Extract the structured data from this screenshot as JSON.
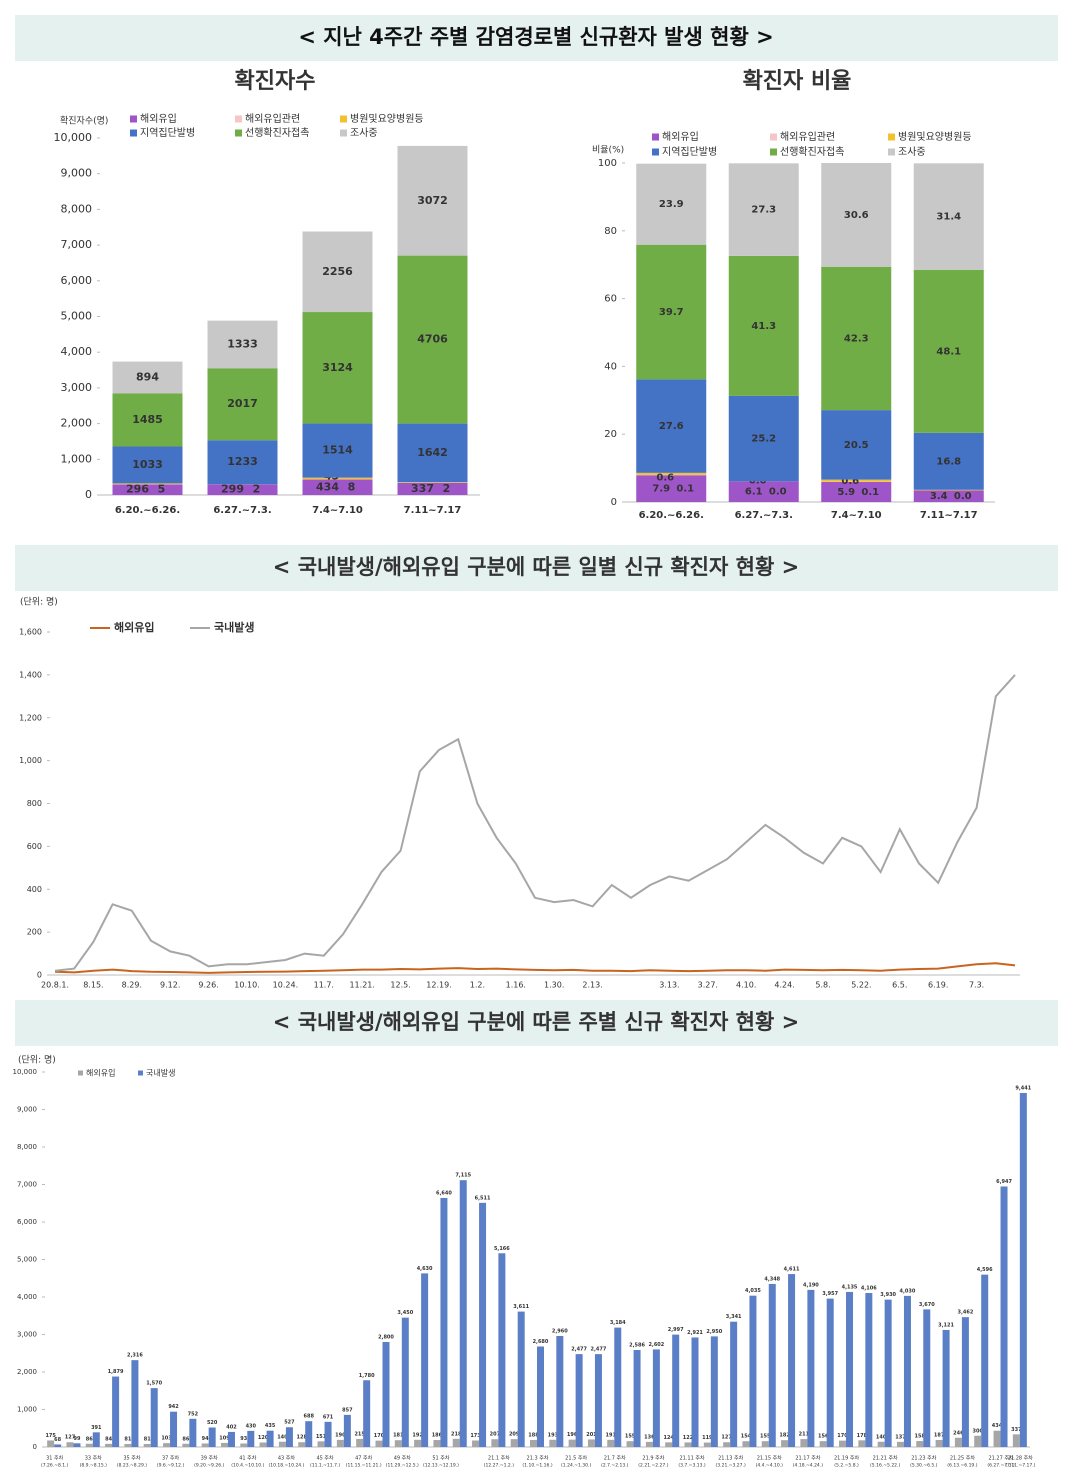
{
  "header": "< 지난 4주간 주별 감염경로별 신규환자 발생 현황 >",
  "chart_data": [
    {
      "type": "stacked_bar",
      "title": "확진자수",
      "y_label": "확진자수(명)",
      "categories": [
        "6.20.~6.26.",
        "6.27.~7.3.",
        "7.4~7.10",
        "7.11~7.17"
      ],
      "series": [
        {
          "name": "해외유입",
          "color": "#9e55c8",
          "values": [
            296,
            299,
            434,
            337
          ]
        },
        {
          "name": "해외유입관련",
          "color": "#f6c6c6",
          "values": [
            5,
            2,
            8,
            2
          ]
        },
        {
          "name": "병원및요양병원등",
          "color": "#f2c12e",
          "values": [
            24,
            0,
            45,
            19
          ]
        },
        {
          "name": "지역집단발병",
          "color": "#4472c4",
          "values": [
            1033,
            1233,
            1514,
            1642
          ]
        },
        {
          "name": "선행확진자접촉",
          "color": "#70ad47",
          "values": [
            1485,
            2017,
            3124,
            4706
          ]
        },
        {
          "name": "조사중",
          "color": "#c8c8c8",
          "values": [
            894,
            1333,
            2256,
            3072
          ]
        }
      ],
      "ylim": [
        0,
        10000
      ],
      "yticks": [
        0,
        {
          "value": 1000,
          "label": "1,000"
        },
        {
          "value": 2000,
          "label": "2,000"
        },
        {
          "value": 3000,
          "label": "3,000"
        },
        {
          "value": 4000,
          "label": "4,000"
        },
        {
          "value": 5000,
          "label": "5,000"
        },
        {
          "value": 6000,
          "label": "6,000"
        },
        {
          "value": 7000,
          "label": "7,000"
        },
        {
          "value": 8000,
          "label": "8,000"
        },
        {
          "value": 9000,
          "label": "9,000"
        },
        {
          "value": 10000,
          "label": "10,000"
        }
      ],
      "grid": false
    },
    {
      "type": "stacked_bar",
      "title": "확진자 비율",
      "y_label": "비율(%)",
      "categories": [
        "6.20.~6.26.",
        "6.27.~7.3.",
        "7.4~7.10",
        "7.11~7.17"
      ],
      "series": [
        {
          "name": "해외유입",
          "color": "#9e55c8",
          "values": [
            7.9,
            6.1,
            5.9,
            3.4
          ]
        },
        {
          "name": "해외유입관련",
          "color": "#f6c6c6",
          "values": [
            0.1,
            0.0,
            0.1,
            0.0
          ],
          "value_labels": [
            "0.1",
            "0.0",
            "0.1",
            "0.0"
          ]
        },
        {
          "name": "병원및요양병원등",
          "color": "#f2c12e",
          "values": [
            0.6,
            0.0,
            0.6,
            0.2
          ],
          "value_labels": [
            "0.6",
            "0.0",
            "0.6",
            "0.2"
          ]
        },
        {
          "name": "지역집단발병",
          "color": "#4472c4",
          "values": [
            27.6,
            25.2,
            20.5,
            16.8
          ]
        },
        {
          "name": "선행확진자접촉",
          "color": "#70ad47",
          "values": [
            39.7,
            41.3,
            42.3,
            48.1
          ]
        },
        {
          "name": "조사중",
          "color": "#c8c8c8",
          "values": [
            23.9,
            27.3,
            30.6,
            31.4
          ]
        }
      ],
      "ylim": [
        0,
        100
      ],
      "yticks": [
        0,
        20,
        40,
        60,
        80,
        100
      ],
      "grid": false
    },
    {
      "type": "line",
      "title": "< 국내발생/해외유입 구분에 따른 일별 신규 확진자 현황 >",
      "y_label": "(단위: 명)",
      "categories": [
        "20.8.1.",
        null,
        "8.15.",
        null,
        "8.29.",
        null,
        "9.12.",
        null,
        "9.26.",
        null,
        "10.10.",
        null,
        "10.24.",
        null,
        "11.7.",
        null,
        "11.21.",
        null,
        "12.5.",
        null,
        "12.19.",
        null,
        "1.2.",
        null,
        "1.16.",
        null,
        "1.30.",
        null,
        "2.13.",
        null,
        null,
        null,
        "3.13.",
        null,
        "3.27.",
        null,
        "4.10.",
        null,
        "4.24.",
        null,
        "5.8.",
        null,
        "5.22.",
        null,
        "6.5.",
        null,
        "6.19.",
        null,
        "7.3.",
        null,
        null
      ],
      "series": [
        {
          "name": "해외유입",
          "color": "#c8641e",
          "values": [
            15,
            12,
            20,
            25,
            18,
            15,
            14,
            12,
            10,
            12,
            14,
            15,
            16,
            18,
            20,
            22,
            25,
            25,
            28,
            26,
            30,
            32,
            28,
            30,
            26,
            24,
            22,
            24,
            20,
            20,
            18,
            22,
            20,
            18,
            20,
            22,
            22,
            20,
            25,
            24,
            22,
            24,
            22,
            20,
            25,
            28,
            30,
            40,
            50,
            55,
            45
          ]
        },
        {
          "name": "국내발생",
          "color": "#a6a6a6",
          "values": [
            20,
            30,
            155,
            330,
            300,
            160,
            110,
            90,
            40,
            50,
            50,
            60,
            70,
            100,
            90,
            190,
            330,
            480,
            580,
            950,
            1050,
            1100,
            800,
            640,
            520,
            360,
            340,
            350,
            320,
            420,
            360,
            420,
            460,
            440,
            490,
            540,
            620,
            700,
            640,
            570,
            520,
            640,
            600,
            480,
            680,
            520,
            430,
            620,
            780,
            1300,
            1400
          ]
        }
      ],
      "ylim": [
        0,
        1600
      ],
      "yticks": [
        0,
        200,
        400,
        600,
        800,
        {
          "value": 1000,
          "label": "1,000"
        },
        {
          "value": 1200,
          "label": "1,200"
        },
        {
          "value": 1400,
          "label": "1,400"
        },
        {
          "value": 1600,
          "label": "1,600"
        }
      ],
      "grid": false
    },
    {
      "type": "grouped_bar",
      "title": "< 국내발생/해외유입 구분에 따른 주별 신규 확진자 현황 >",
      "y_label": "(단위: 명)",
      "categories": [
        "31 주차",
        null,
        "33 주차",
        null,
        "35 주차",
        null,
        "37 주차",
        null,
        "39 주차",
        null,
        "41 주차",
        null,
        "43 주차",
        null,
        "45 주차",
        null,
        "47 주차",
        null,
        "49 주차",
        null,
        "51 주차",
        null,
        null,
        "21.1 주차",
        null,
        "21.3 주차",
        null,
        "21.5 주차",
        null,
        "21.7 주차",
        null,
        "21.9 주차",
        null,
        "21.11 주차",
        null,
        "21.13 주차",
        null,
        "21.15 주차",
        null,
        "21.17 주차",
        null,
        "21.19 주차",
        null,
        "21.21 주차",
        null,
        "21.23 주차",
        null,
        "21.25 주차",
        null,
        "21.27 주차",
        "21.28 주차"
      ],
      "category_dates": [
        "(7.26.~8.1.)",
        null,
        "(8.9.~8.15.)",
        null,
        "(8.23.~8.29.)",
        null,
        "(9.6.~9.12.)",
        null,
        "(9.20.~9.26.)",
        null,
        "(10.4.~10.10.)",
        null,
        "(10.18.~10.24.)",
        null,
        "(11.1.~11.7.)",
        null,
        "(11.15.~11.21.)",
        null,
        "(11.29.~12.5.)",
        null,
        "(12.13.~12.19.)",
        null,
        null,
        "(12.27.~1.2.)",
        null,
        "(1.10.~1.16.)",
        null,
        "(1.24.~1.30.)",
        null,
        "(2.7.~2.13.)",
        null,
        "(2.21.~2.27.)",
        null,
        "(3.7.~3.13.)",
        null,
        "(3.21.~3.27.)",
        null,
        "(4.4.~4.10.)",
        null,
        "(4.18.~4.24.)",
        null,
        "(5.2.~5.8.)",
        null,
        "(5.16.~5.22.)",
        null,
        "(5.30.~6.5.)",
        null,
        "(6.13.~6.19.)",
        null,
        "(6.27.~7.3.)",
        "(7.11.~7.17.)"
      ],
      "series": [
        {
          "name": "해외유입",
          "color": "#a6a6a6",
          "values": [
            175,
            127,
            86,
            84,
            81,
            81,
            103,
            86,
            94,
            109,
            93,
            120,
            140,
            128,
            151,
            190,
            215,
            170,
            181,
            192,
            186,
            218,
            173,
            207,
            209,
            188,
            193,
            196,
            201,
            191,
            155,
            136,
            124,
            122,
            119,
            127,
            154,
            155,
            182,
            211,
            156,
            170,
            178,
            140,
            137,
            158,
            187,
            246,
            300,
            434,
            337
          ]
        },
        {
          "name": "국내발생",
          "color": "#5b7fc7",
          "values": [
            68,
            99,
            391,
            1879,
            2316,
            1570,
            942,
            752,
            520,
            402,
            430,
            435,
            527,
            688,
            671,
            857,
            1780,
            2800,
            3450,
            4630,
            6640,
            7115,
            6511,
            5166,
            3611,
            2680,
            2960,
            2477,
            2477,
            3184,
            2586,
            2602,
            2997,
            2921,
            2950,
            3341,
            4035,
            4348,
            4611,
            4190,
            3957,
            4135,
            4106,
            3930,
            4030,
            3670,
            3121,
            3462,
            4596,
            6947,
            9441
          ],
          "value_labels": [
            "68",
            "99",
            "391",
            "1,879",
            "2,316",
            "1,570",
            "942",
            "752",
            "520",
            "402",
            "430",
            "435",
            "527",
            "688",
            "671",
            "857",
            "1,780",
            "2,800",
            "3,450",
            "4,630",
            "6,640",
            "7,115",
            "6,511",
            "5,166",
            "3,611",
            "2,680",
            "2,960",
            "2,477",
            "2,477",
            "3,184",
            "2,586",
            "2,602",
            "2,997",
            "2,921",
            "2,950",
            "3,341",
            "4,035",
            "4,348",
            "4,611",
            "4,190",
            "3,957",
            "4,135",
            "4,106",
            "3,930",
            "4,030",
            "3,670",
            "3,121",
            "3,462",
            "4,596",
            "6,947",
            "9,441"
          ]
        }
      ],
      "ylim": [
        0,
        10000
      ],
      "yticks": [
        0,
        {
          "value": 1000,
          "label": "1,000"
        },
        {
          "value": 2000,
          "label": "2,000"
        },
        {
          "value": 3000,
          "label": "3,000"
        },
        {
          "value": 4000,
          "label": "4,000"
        },
        {
          "value": 5000,
          "label": "5,000"
        },
        {
          "value": 6000,
          "label": "6,000"
        },
        {
          "value": 7000,
          "label": "7,000"
        },
        {
          "value": 8000,
          "label": "8,000"
        },
        {
          "value": 9000,
          "label": "9,000"
        },
        {
          "value": 10000,
          "label": "10,000"
        }
      ],
      "grid": false
    }
  ]
}
